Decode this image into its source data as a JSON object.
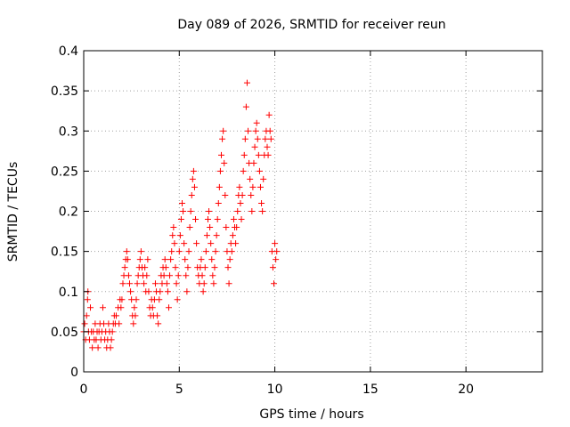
{
  "chart_data": {
    "type": "scatter",
    "title": "Day 089 of 2026, SRMTID for receiver reun",
    "xlabel": "GPS time / hours",
    "ylabel": "SRMTID / TECUs",
    "xlim": [
      0,
      24
    ],
    "ylim": [
      0,
      0.4
    ],
    "xticks": [
      0,
      5,
      10,
      15,
      20
    ],
    "yticks": [
      0,
      0.05,
      0.1,
      0.15,
      0.2,
      0.25,
      0.3,
      0.35,
      0.4
    ],
    "xtick_labels": [
      "0",
      "5",
      "10",
      "15",
      "20"
    ],
    "ytick_labels": [
      "0",
      "0.05",
      "0.1",
      "0.15",
      "0.2",
      "0.25",
      "0.3",
      "0.35",
      "0.4"
    ],
    "grid": true,
    "marker": "plus",
    "color": "#ff0000",
    "series": [
      {
        "points": [
          [
            0.0,
            0.05
          ],
          [
            0.05,
            0.06
          ],
          [
            0.1,
            0.04
          ],
          [
            0.15,
            0.07
          ],
          [
            0.2,
            0.09
          ],
          [
            0.22,
            0.1
          ],
          [
            0.25,
            0.05
          ],
          [
            0.3,
            0.04
          ],
          [
            0.35,
            0.08
          ],
          [
            0.4,
            0.05
          ],
          [
            0.45,
            0.03
          ],
          [
            0.5,
            0.05
          ],
          [
            0.55,
            0.04
          ],
          [
            0.6,
            0.06
          ],
          [
            0.65,
            0.04
          ],
          [
            0.7,
            0.05
          ],
          [
            0.75,
            0.03
          ],
          [
            0.8,
            0.05
          ],
          [
            0.85,
            0.06
          ],
          [
            0.9,
            0.04
          ],
          [
            0.95,
            0.05
          ],
          [
            1.0,
            0.08
          ],
          [
            1.05,
            0.06
          ],
          [
            1.1,
            0.04
          ],
          [
            1.15,
            0.05
          ],
          [
            1.2,
            0.03
          ],
          [
            1.25,
            0.04
          ],
          [
            1.3,
            0.06
          ],
          [
            1.35,
            0.05
          ],
          [
            1.4,
            0.03
          ],
          [
            1.45,
            0.04
          ],
          [
            1.5,
            0.05
          ],
          [
            1.55,
            0.06
          ],
          [
            1.6,
            0.07
          ],
          [
            1.65,
            0.06
          ],
          [
            1.7,
            0.07
          ],
          [
            1.8,
            0.08
          ],
          [
            1.85,
            0.06
          ],
          [
            1.9,
            0.09
          ],
          [
            1.95,
            0.08
          ],
          [
            2.0,
            0.09
          ],
          [
            2.05,
            0.11
          ],
          [
            2.1,
            0.12
          ],
          [
            2.15,
            0.13
          ],
          [
            2.2,
            0.14
          ],
          [
            2.25,
            0.15
          ],
          [
            2.3,
            0.14
          ],
          [
            2.35,
            0.12
          ],
          [
            2.4,
            0.11
          ],
          [
            2.45,
            0.1
          ],
          [
            2.5,
            0.09
          ],
          [
            2.55,
            0.07
          ],
          [
            2.6,
            0.06
          ],
          [
            2.65,
            0.08
          ],
          [
            2.7,
            0.07
          ],
          [
            2.75,
            0.09
          ],
          [
            2.8,
            0.11
          ],
          [
            2.85,
            0.12
          ],
          [
            2.9,
            0.13
          ],
          [
            2.95,
            0.14
          ],
          [
            3.0,
            0.15
          ],
          [
            3.05,
            0.13
          ],
          [
            3.1,
            0.12
          ],
          [
            3.15,
            0.11
          ],
          [
            3.2,
            0.13
          ],
          [
            3.25,
            0.1
          ],
          [
            3.3,
            0.12
          ],
          [
            3.35,
            0.14
          ],
          [
            3.4,
            0.1
          ],
          [
            3.45,
            0.08
          ],
          [
            3.5,
            0.07
          ],
          [
            3.55,
            0.09
          ],
          [
            3.6,
            0.08
          ],
          [
            3.65,
            0.07
          ],
          [
            3.7,
            0.09
          ],
          [
            3.75,
            0.11
          ],
          [
            3.8,
            0.1
          ],
          [
            3.85,
            0.07
          ],
          [
            3.9,
            0.06
          ],
          [
            3.95,
            0.09
          ],
          [
            4.0,
            0.1
          ],
          [
            4.05,
            0.12
          ],
          [
            4.1,
            0.11
          ],
          [
            4.15,
            0.13
          ],
          [
            4.2,
            0.12
          ],
          [
            4.25,
            0.14
          ],
          [
            4.3,
            0.13
          ],
          [
            4.35,
            0.11
          ],
          [
            4.4,
            0.1
          ],
          [
            4.45,
            0.08
          ],
          [
            4.5,
            0.12
          ],
          [
            4.55,
            0.14
          ],
          [
            4.6,
            0.15
          ],
          [
            4.65,
            0.17
          ],
          [
            4.7,
            0.18
          ],
          [
            4.75,
            0.16
          ],
          [
            4.8,
            0.13
          ],
          [
            4.85,
            0.11
          ],
          [
            4.9,
            0.09
          ],
          [
            4.95,
            0.12
          ],
          [
            5.0,
            0.15
          ],
          [
            5.05,
            0.17
          ],
          [
            5.1,
            0.19
          ],
          [
            5.15,
            0.21
          ],
          [
            5.2,
            0.2
          ],
          [
            5.25,
            0.16
          ],
          [
            5.3,
            0.14
          ],
          [
            5.35,
            0.12
          ],
          [
            5.4,
            0.1
          ],
          [
            5.45,
            0.13
          ],
          [
            5.5,
            0.15
          ],
          [
            5.55,
            0.18
          ],
          [
            5.6,
            0.2
          ],
          [
            5.65,
            0.22
          ],
          [
            5.7,
            0.24
          ],
          [
            5.75,
            0.25
          ],
          [
            5.8,
            0.23
          ],
          [
            5.85,
            0.19
          ],
          [
            5.9,
            0.16
          ],
          [
            5.95,
            0.13
          ],
          [
            6.0,
            0.12
          ],
          [
            6.05,
            0.11
          ],
          [
            6.1,
            0.13
          ],
          [
            6.15,
            0.14
          ],
          [
            6.2,
            0.12
          ],
          [
            6.25,
            0.1
          ],
          [
            6.3,
            0.11
          ],
          [
            6.35,
            0.13
          ],
          [
            6.4,
            0.15
          ],
          [
            6.45,
            0.17
          ],
          [
            6.5,
            0.19
          ],
          [
            6.55,
            0.2
          ],
          [
            6.6,
            0.18
          ],
          [
            6.65,
            0.16
          ],
          [
            6.7,
            0.14
          ],
          [
            6.75,
            0.12
          ],
          [
            6.8,
            0.11
          ],
          [
            6.85,
            0.13
          ],
          [
            6.9,
            0.15
          ],
          [
            6.95,
            0.17
          ],
          [
            7.0,
            0.19
          ],
          [
            7.05,
            0.21
          ],
          [
            7.1,
            0.23
          ],
          [
            7.15,
            0.25
          ],
          [
            7.2,
            0.27
          ],
          [
            7.25,
            0.29
          ],
          [
            7.3,
            0.3
          ],
          [
            7.35,
            0.26
          ],
          [
            7.4,
            0.22
          ],
          [
            7.45,
            0.18
          ],
          [
            7.5,
            0.15
          ],
          [
            7.55,
            0.13
          ],
          [
            7.6,
            0.11
          ],
          [
            7.65,
            0.14
          ],
          [
            7.7,
            0.16
          ],
          [
            7.75,
            0.15
          ],
          [
            7.8,
            0.17
          ],
          [
            7.85,
            0.19
          ],
          [
            7.9,
            0.18
          ],
          [
            7.95,
            0.16
          ],
          [
            8.0,
            0.18
          ],
          [
            8.05,
            0.2
          ],
          [
            8.1,
            0.22
          ],
          [
            8.15,
            0.23
          ],
          [
            8.2,
            0.21
          ],
          [
            8.25,
            0.19
          ],
          [
            8.3,
            0.22
          ],
          [
            8.35,
            0.25
          ],
          [
            8.4,
            0.27
          ],
          [
            8.45,
            0.29
          ],
          [
            8.5,
            0.33
          ],
          [
            8.55,
            0.36
          ],
          [
            8.6,
            0.3
          ],
          [
            8.65,
            0.26
          ],
          [
            8.7,
            0.24
          ],
          [
            8.75,
            0.22
          ],
          [
            8.8,
            0.2
          ],
          [
            8.85,
            0.23
          ],
          [
            8.9,
            0.26
          ],
          [
            8.95,
            0.28
          ],
          [
            9.0,
            0.3
          ],
          [
            9.05,
            0.31
          ],
          [
            9.1,
            0.29
          ],
          [
            9.15,
            0.27
          ],
          [
            9.2,
            0.25
          ],
          [
            9.25,
            0.23
          ],
          [
            9.3,
            0.21
          ],
          [
            9.35,
            0.2
          ],
          [
            9.4,
            0.24
          ],
          [
            9.45,
            0.27
          ],
          [
            9.5,
            0.29
          ],
          [
            9.55,
            0.3
          ],
          [
            9.6,
            0.28
          ],
          [
            9.65,
            0.27
          ],
          [
            9.7,
            0.32
          ],
          [
            9.75,
            0.3
          ],
          [
            9.8,
            0.29
          ],
          [
            9.85,
            0.15
          ],
          [
            9.9,
            0.13
          ],
          [
            9.95,
            0.11
          ],
          [
            10.0,
            0.16
          ],
          [
            10.05,
            0.14
          ],
          [
            10.1,
            0.15
          ]
        ]
      }
    ]
  }
}
